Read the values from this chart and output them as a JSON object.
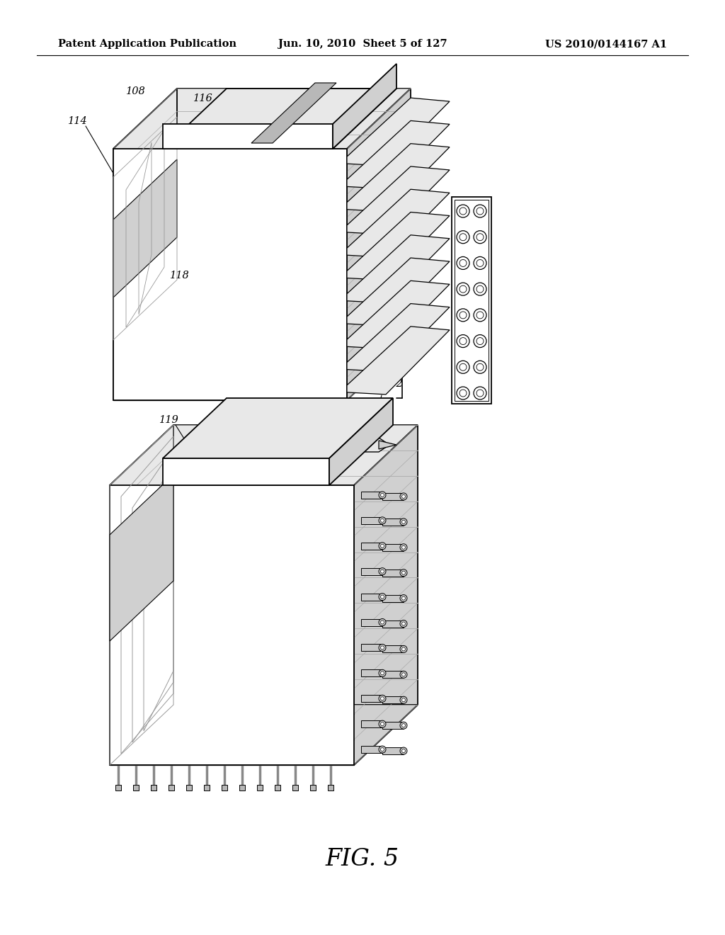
{
  "bg": "#ffffff",
  "header_left": "Patent Application Publication",
  "header_center": "Jun. 10, 2010  Sheet 5 of 127",
  "header_right": "US 2010/0144167 A1",
  "fig_label": "FIG. 5"
}
